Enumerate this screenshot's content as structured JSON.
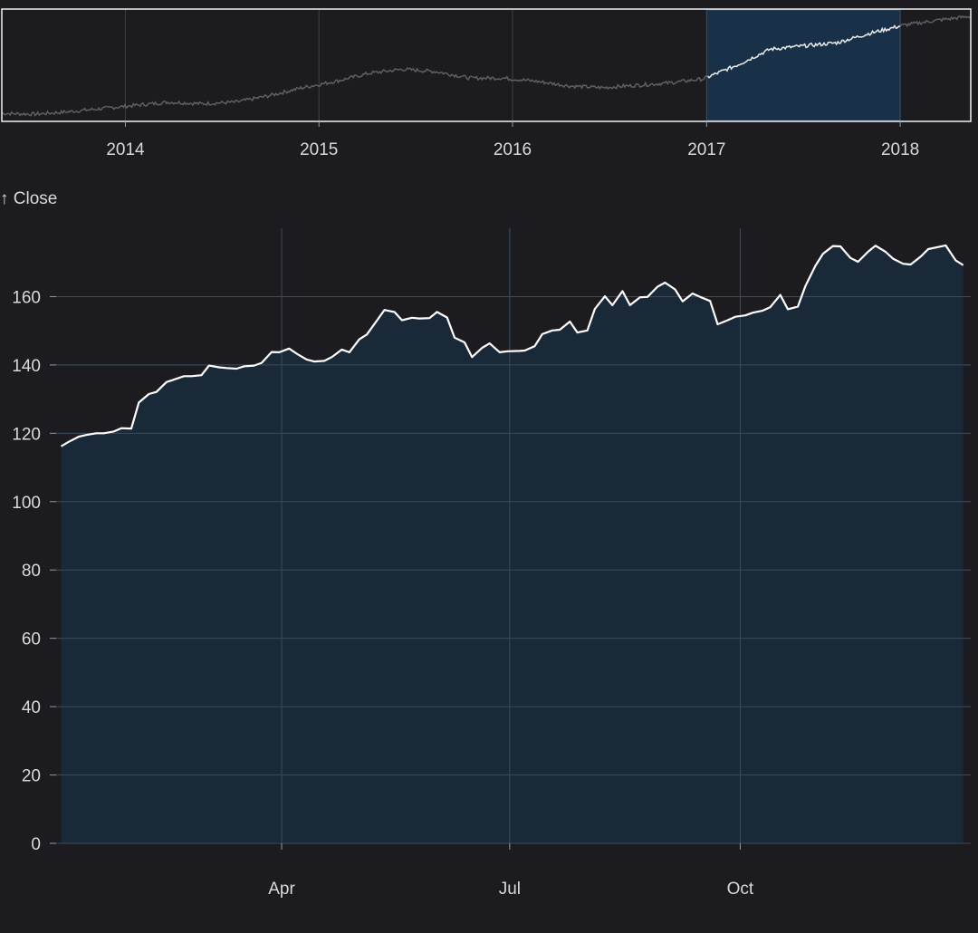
{
  "chart_data": [
    {
      "role": "overview",
      "type": "line",
      "x_ticks": [
        "2014",
        "2015",
        "2016",
        "2017",
        "2018"
      ],
      "x_range": [
        "2013-05-13",
        "2018-05-14"
      ],
      "brush_range": [
        "2017-01-01",
        "2018-01-01"
      ],
      "series": [
        {
          "points": [
            [
              "2013-05-13",
              60
            ],
            [
              "2013-07-15",
              59
            ],
            [
              "2013-09-16",
              62
            ],
            [
              "2013-11-18",
              66
            ],
            [
              "2014-01-20",
              70
            ],
            [
              "2014-03-24",
              74
            ],
            [
              "2014-05-26",
              72
            ],
            [
              "2014-07-28",
              74
            ],
            [
              "2014-09-29",
              82
            ],
            [
              "2014-12-01",
              92
            ],
            [
              "2015-02-02",
              100
            ],
            [
              "2015-04-06",
              110
            ],
            [
              "2015-06-08",
              115
            ],
            [
              "2015-08-10",
              112
            ],
            [
              "2015-10-12",
              104
            ],
            [
              "2015-12-14",
              104
            ],
            [
              "2016-02-15",
              100
            ],
            [
              "2016-04-18",
              94
            ],
            [
              "2016-06-20",
              92
            ],
            [
              "2016-08-22",
              95
            ],
            [
              "2016-10-24",
              98
            ],
            [
              "2016-12-26",
              103
            ],
            [
              "2017-02-27",
              120
            ],
            [
              "2017-05-01",
              140
            ],
            [
              "2017-07-03",
              144
            ],
            [
              "2017-09-04",
              148
            ],
            [
              "2017-11-06",
              160
            ],
            [
              "2018-01-08",
              170
            ],
            [
              "2018-03-12",
              176
            ],
            [
              "2018-05-14",
              181
            ]
          ]
        }
      ]
    },
    {
      "role": "focus",
      "type": "area",
      "ylabel": "↑ Close",
      "x_range": [
        "2017-01-01",
        "2018-01-01"
      ],
      "ylim": [
        0,
        180
      ],
      "y_ticks": [
        0,
        20,
        40,
        60,
        80,
        100,
        120,
        140,
        160
      ],
      "x_ticks": [
        {
          "date": "2017-04-01",
          "label": "Apr"
        },
        {
          "date": "2017-07-01",
          "label": "Jul"
        },
        {
          "date": "2017-10-01",
          "label": "Oct"
        }
      ],
      "grid": true,
      "series": [
        {
          "points": [
            [
              "2017-01-03",
              116.2
            ],
            [
              "2017-01-06",
              117.5
            ],
            [
              "2017-01-10",
              119.0
            ],
            [
              "2017-01-13",
              119.5
            ],
            [
              "2017-01-17",
              120.0
            ],
            [
              "2017-01-20",
              120.0
            ],
            [
              "2017-01-24",
              120.5
            ],
            [
              "2017-01-27",
              121.5
            ],
            [
              "2017-01-31",
              121.4
            ],
            [
              "2017-02-03",
              129.0
            ],
            [
              "2017-02-07",
              131.5
            ],
            [
              "2017-02-10",
              132.1
            ],
            [
              "2017-02-14",
              135.0
            ],
            [
              "2017-02-17",
              135.7
            ],
            [
              "2017-02-21",
              136.7
            ],
            [
              "2017-02-24",
              136.7
            ],
            [
              "2017-02-28",
              137.0
            ],
            [
              "2017-03-03",
              139.8
            ],
            [
              "2017-03-07",
              139.3
            ],
            [
              "2017-03-10",
              139.1
            ],
            [
              "2017-03-14",
              138.9
            ],
            [
              "2017-03-17",
              139.6
            ],
            [
              "2017-03-21",
              139.8
            ],
            [
              "2017-03-24",
              140.6
            ],
            [
              "2017-03-28",
              143.8
            ],
            [
              "2017-03-31",
              143.7
            ],
            [
              "2017-04-04",
              144.8
            ],
            [
              "2017-04-07",
              143.3
            ],
            [
              "2017-04-11",
              141.6
            ],
            [
              "2017-04-14",
              141.0
            ],
            [
              "2017-04-18",
              141.2
            ],
            [
              "2017-04-21",
              142.3
            ],
            [
              "2017-04-25",
              144.5
            ],
            [
              "2017-04-28",
              143.7
            ],
            [
              "2017-05-02",
              147.5
            ],
            [
              "2017-05-05",
              148.9
            ],
            [
              "2017-05-09",
              153.0
            ],
            [
              "2017-05-12",
              156.1
            ],
            [
              "2017-05-16",
              155.5
            ],
            [
              "2017-05-19",
              153.1
            ],
            [
              "2017-05-23",
              153.8
            ],
            [
              "2017-05-26",
              153.6
            ],
            [
              "2017-05-30",
              153.7
            ],
            [
              "2017-06-02",
              155.5
            ],
            [
              "2017-06-06",
              153.9
            ],
            [
              "2017-06-09",
              148.0
            ],
            [
              "2017-06-13",
              146.6
            ],
            [
              "2017-06-16",
              142.3
            ],
            [
              "2017-06-20",
              145.0
            ],
            [
              "2017-06-23",
              146.3
            ],
            [
              "2017-06-27",
              143.7
            ],
            [
              "2017-06-30",
              144.0
            ],
            [
              "2017-07-05",
              144.1
            ],
            [
              "2017-07-07",
              144.2
            ],
            [
              "2017-07-11",
              145.5
            ],
            [
              "2017-07-14",
              149.0
            ],
            [
              "2017-07-18",
              150.1
            ],
            [
              "2017-07-21",
              150.3
            ],
            [
              "2017-07-25",
              152.7
            ],
            [
              "2017-07-28",
              149.5
            ],
            [
              "2017-08-01",
              150.1
            ],
            [
              "2017-08-04",
              156.4
            ],
            [
              "2017-08-08",
              160.1
            ],
            [
              "2017-08-11",
              157.5
            ],
            [
              "2017-08-15",
              161.6
            ],
            [
              "2017-08-18",
              157.5
            ],
            [
              "2017-08-22",
              159.8
            ],
            [
              "2017-08-25",
              159.9
            ],
            [
              "2017-08-29",
              162.9
            ],
            [
              "2017-09-01",
              164.1
            ],
            [
              "2017-09-05",
              162.1
            ],
            [
              "2017-09-08",
              158.6
            ],
            [
              "2017-09-12",
              160.9
            ],
            [
              "2017-09-15",
              159.9
            ],
            [
              "2017-09-19",
              158.7
            ],
            [
              "2017-09-22",
              151.9
            ],
            [
              "2017-09-26",
              153.1
            ],
            [
              "2017-09-29",
              154.1
            ],
            [
              "2017-10-03",
              154.5
            ],
            [
              "2017-10-06",
              155.3
            ],
            [
              "2017-10-10",
              155.9
            ],
            [
              "2017-10-13",
              156.9
            ],
            [
              "2017-10-17",
              160.5
            ],
            [
              "2017-10-20",
              156.3
            ],
            [
              "2017-10-24",
              157.1
            ],
            [
              "2017-10-27",
              163.1
            ],
            [
              "2017-10-31",
              169.0
            ],
            [
              "2017-11-03",
              172.5
            ],
            [
              "2017-11-07",
              174.8
            ],
            [
              "2017-11-10",
              174.7
            ],
            [
              "2017-11-14",
              171.3
            ],
            [
              "2017-11-17",
              170.2
            ],
            [
              "2017-11-21",
              173.1
            ],
            [
              "2017-11-24",
              174.9
            ],
            [
              "2017-11-28",
              173.1
            ],
            [
              "2017-12-01",
              171.1
            ],
            [
              "2017-12-05",
              169.6
            ],
            [
              "2017-12-08",
              169.4
            ],
            [
              "2017-12-12",
              171.7
            ],
            [
              "2017-12-15",
              173.9
            ],
            [
              "2017-12-19",
              174.5
            ],
            [
              "2017-12-22",
              175.0
            ],
            [
              "2017-12-26",
              170.6
            ],
            [
              "2017-12-29",
              169.2
            ]
          ]
        }
      ]
    }
  ]
}
